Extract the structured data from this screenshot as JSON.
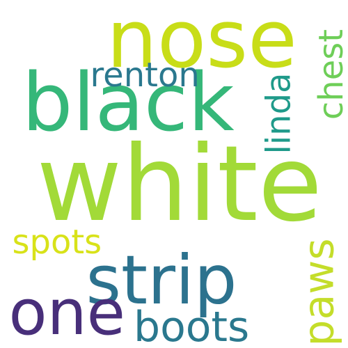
{
  "words": [
    {
      "id": "nose",
      "text": "nose",
      "color": "#c8dd18",
      "rotate": 0
    },
    {
      "id": "black",
      "text": "black",
      "color": "#35b779",
      "rotate": 0
    },
    {
      "id": "white",
      "text": "white",
      "color": "#a2da38",
      "rotate": 0
    },
    {
      "id": "renton",
      "text": "renton",
      "color": "#2a788e",
      "rotate": 0
    },
    {
      "id": "chest",
      "text": "chest",
      "color": "#6ece58",
      "rotate": -90
    },
    {
      "id": "linda",
      "text": "linda",
      "color": "#1f9a8a",
      "rotate": -90
    },
    {
      "id": "spots",
      "text": "spots",
      "color": "#d8e219",
      "rotate": 0
    },
    {
      "id": "strip",
      "text": "strip",
      "color": "#2c728e",
      "rotate": 0
    },
    {
      "id": "paws",
      "text": "paws",
      "color": "#c4dd2a",
      "rotate": -90
    },
    {
      "id": "one",
      "text": "one",
      "color": "#482f7a",
      "rotate": 0
    },
    {
      "id": "boots",
      "text": "boots",
      "color": "#2a788e",
      "rotate": 0
    }
  ]
}
